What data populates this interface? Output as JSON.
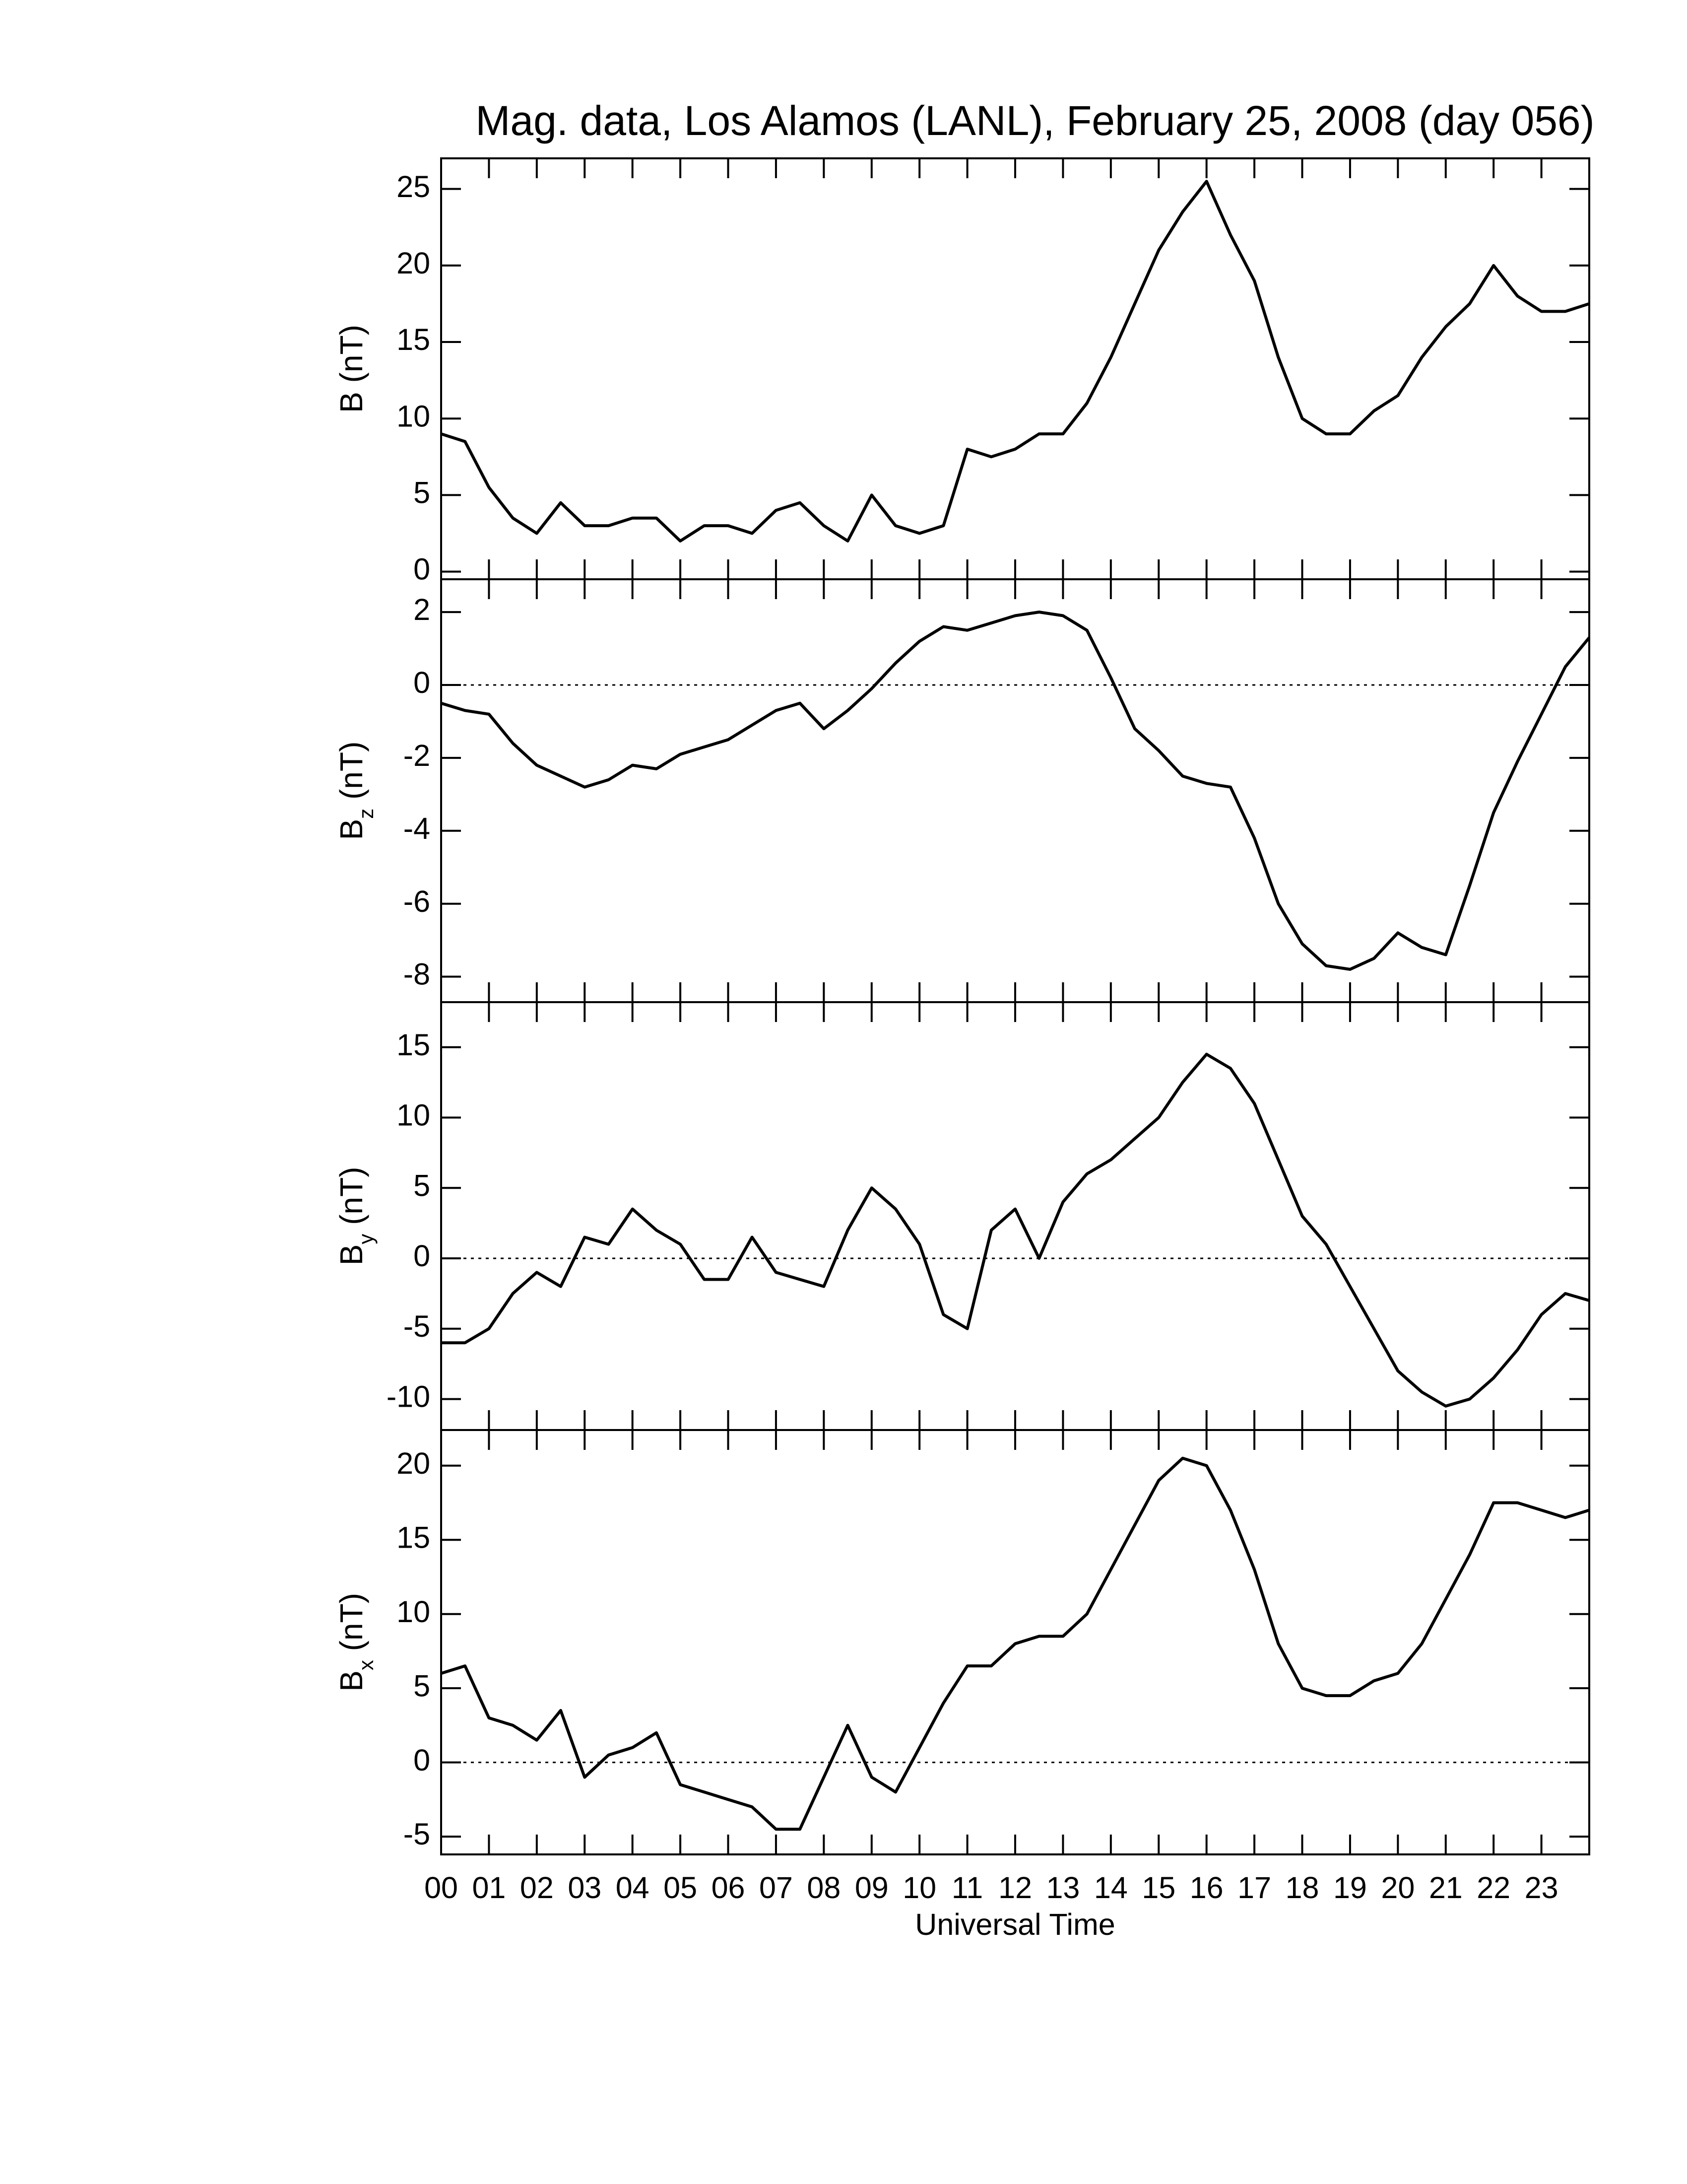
{
  "chart_data": [
    {
      "type": "line",
      "title": "Mag. data, Los Alamos (LANL), February 25, 2008 (day 056)",
      "ylabel": [
        "B (nT)"
      ],
      "x": [
        0,
        0.5,
        1,
        1.5,
        2,
        2.5,
        3,
        3.5,
        4,
        4.5,
        5,
        5.5,
        6,
        6.5,
        7,
        7.5,
        8,
        8.5,
        9,
        9.5,
        10,
        10.5,
        11,
        11.5,
        12,
        12.5,
        13,
        13.5,
        14,
        14.5,
        15,
        15.5,
        16,
        16.5,
        17,
        17.5,
        18,
        18.5,
        19,
        19.5,
        20,
        20.5,
        21,
        21.5,
        22,
        22.5,
        23,
        23.5,
        24
      ],
      "values": [
        9,
        8.5,
        5.5,
        3.5,
        2.5,
        4.5,
        3,
        3,
        3.5,
        3.5,
        2,
        3,
        3,
        2.5,
        4,
        4.5,
        3,
        2,
        5,
        3,
        2.5,
        3,
        8,
        7.5,
        8,
        9,
        9,
        11,
        14,
        17.5,
        21,
        23.5,
        25.5,
        22,
        19,
        14,
        10,
        9,
        9,
        10.5,
        11.5,
        14,
        16,
        17.5,
        20,
        18,
        17,
        17,
        17.5
      ],
      "color": "#000000",
      "zero_line": false,
      "show_xticklabels": false,
      "xlim": [
        0,
        24
      ],
      "ylim": [
        -0.5,
        27
      ],
      "yticks": [
        0,
        5,
        10,
        15,
        20,
        25
      ],
      "xticks": [
        {
          "value": 0,
          "label": "00"
        },
        {
          "value": 1,
          "label": "01"
        },
        {
          "value": 2,
          "label": "02"
        },
        {
          "value": 3,
          "label": "03"
        },
        {
          "value": 4,
          "label": "04"
        },
        {
          "value": 5,
          "label": "05"
        },
        {
          "value": 6,
          "label": "06"
        },
        {
          "value": 7,
          "label": "07"
        },
        {
          "value": 8,
          "label": "08"
        },
        {
          "value": 9,
          "label": "09"
        },
        {
          "value": 10,
          "label": "10"
        },
        {
          "value": 11,
          "label": "11"
        },
        {
          "value": 12,
          "label": "12"
        },
        {
          "value": 13,
          "label": "13"
        },
        {
          "value": 14,
          "label": "14"
        },
        {
          "value": 15,
          "label": "15"
        },
        {
          "value": 16,
          "label": "16"
        },
        {
          "value": 17,
          "label": "17"
        },
        {
          "value": 18,
          "label": "18"
        },
        {
          "value": 19,
          "label": "19"
        },
        {
          "value": 20,
          "label": "20"
        },
        {
          "value": 21,
          "label": "21"
        },
        {
          "value": 22,
          "label": "22"
        },
        {
          "value": 23,
          "label": "23"
        }
      ]
    },
    {
      "type": "line",
      "ylabel": [
        "B",
        "z",
        " (nT)"
      ],
      "x": [
        0,
        0.5,
        1,
        1.5,
        2,
        2.5,
        3,
        3.5,
        4,
        4.5,
        5,
        5.5,
        6,
        6.5,
        7,
        7.5,
        8,
        8.5,
        9,
        9.5,
        10,
        10.5,
        11,
        11.5,
        12,
        12.5,
        13,
        13.5,
        14,
        14.5,
        15,
        15.5,
        16,
        16.5,
        17,
        17.5,
        18,
        18.5,
        19,
        19.5,
        20,
        20.5,
        21,
        21.5,
        22,
        22.5,
        23,
        23.5,
        24
      ],
      "values": [
        -0.5,
        -0.7,
        -0.8,
        -1.6,
        -2.2,
        -2.5,
        -2.8,
        -2.6,
        -2.2,
        -2.3,
        -1.9,
        -1.7,
        -1.5,
        -1.1,
        -0.7,
        -0.5,
        -1.2,
        -0.7,
        -0.1,
        0.6,
        1.2,
        1.6,
        1.5,
        1.7,
        1.9,
        2.0,
        1.9,
        1.5,
        0.2,
        -1.2,
        -1.8,
        -2.5,
        -2.7,
        -2.8,
        -4.2,
        -6,
        -7.1,
        -7.7,
        -7.8,
        -7.5,
        -6.8,
        -7.2,
        -7.4,
        -5.5,
        -3.5,
        -2.1,
        -0.8,
        0.5,
        1.3
      ],
      "color": "#000000",
      "zero_line": true,
      "show_xticklabels": false,
      "xlim": [
        0,
        24
      ],
      "ylim": [
        -8.7,
        2.9
      ],
      "yticks": [
        -8,
        -6,
        -4,
        -2,
        0,
        2
      ],
      "xticks": [
        {
          "value": 0,
          "label": "00"
        },
        {
          "value": 1,
          "label": "01"
        },
        {
          "value": 2,
          "label": "02"
        },
        {
          "value": 3,
          "label": "03"
        },
        {
          "value": 4,
          "label": "04"
        },
        {
          "value": 5,
          "label": "05"
        },
        {
          "value": 6,
          "label": "06"
        },
        {
          "value": 7,
          "label": "07"
        },
        {
          "value": 8,
          "label": "08"
        },
        {
          "value": 9,
          "label": "09"
        },
        {
          "value": 10,
          "label": "10"
        },
        {
          "value": 11,
          "label": "11"
        },
        {
          "value": 12,
          "label": "12"
        },
        {
          "value": 13,
          "label": "13"
        },
        {
          "value": 14,
          "label": "14"
        },
        {
          "value": 15,
          "label": "15"
        },
        {
          "value": 16,
          "label": "16"
        },
        {
          "value": 17,
          "label": "17"
        },
        {
          "value": 18,
          "label": "18"
        },
        {
          "value": 19,
          "label": "19"
        },
        {
          "value": 20,
          "label": "20"
        },
        {
          "value": 21,
          "label": "21"
        },
        {
          "value": 22,
          "label": "22"
        },
        {
          "value": 23,
          "label": "23"
        }
      ]
    },
    {
      "type": "line",
      "ylabel": [
        "B",
        "y",
        " (nT)"
      ],
      "x": [
        0,
        0.5,
        1,
        1.5,
        2,
        2.5,
        3,
        3.5,
        4,
        4.5,
        5,
        5.5,
        6,
        6.5,
        7,
        7.5,
        8,
        8.5,
        9,
        9.5,
        10,
        10.5,
        11,
        11.5,
        12,
        12.5,
        13,
        13.5,
        14,
        14.5,
        15,
        15.5,
        16,
        16.5,
        17,
        17.5,
        18,
        18.5,
        19,
        19.5,
        20,
        20.5,
        21,
        21.5,
        22,
        22.5,
        23,
        23.5,
        24
      ],
      "values": [
        -6,
        -6,
        -5,
        -2.5,
        -1,
        -2,
        1.5,
        1,
        3.5,
        2,
        1,
        -1.5,
        -1.5,
        1.5,
        -1,
        -1.5,
        -2,
        2,
        5,
        3.5,
        1,
        -4,
        -5,
        2,
        3.5,
        0,
        4,
        6,
        7,
        8.5,
        10,
        12.5,
        14.5,
        13.5,
        11,
        7,
        3,
        1,
        -2,
        -5,
        -8,
        -9.5,
        -10.5,
        -10,
        -8.5,
        -6.5,
        -4,
        -2.5,
        -3
      ],
      "color": "#000000",
      "zero_line": true,
      "show_xticklabels": false,
      "xlim": [
        0,
        24
      ],
      "ylim": [
        -12.2,
        18.2
      ],
      "yticks": [
        -10,
        -5,
        0,
        5,
        10,
        15
      ],
      "xticks": [
        {
          "value": 0,
          "label": "00"
        },
        {
          "value": 1,
          "label": "01"
        },
        {
          "value": 2,
          "label": "02"
        },
        {
          "value": 3,
          "label": "03"
        },
        {
          "value": 4,
          "label": "04"
        },
        {
          "value": 5,
          "label": "05"
        },
        {
          "value": 6,
          "label": "06"
        },
        {
          "value": 7,
          "label": "07"
        },
        {
          "value": 8,
          "label": "08"
        },
        {
          "value": 9,
          "label": "09"
        },
        {
          "value": 10,
          "label": "10"
        },
        {
          "value": 11,
          "label": "11"
        },
        {
          "value": 12,
          "label": "12"
        },
        {
          "value": 13,
          "label": "13"
        },
        {
          "value": 14,
          "label": "14"
        },
        {
          "value": 15,
          "label": "15"
        },
        {
          "value": 16,
          "label": "16"
        },
        {
          "value": 17,
          "label": "17"
        },
        {
          "value": 18,
          "label": "18"
        },
        {
          "value": 19,
          "label": "19"
        },
        {
          "value": 20,
          "label": "20"
        },
        {
          "value": 21,
          "label": "21"
        },
        {
          "value": 22,
          "label": "22"
        },
        {
          "value": 23,
          "label": "23"
        }
      ]
    },
    {
      "type": "line",
      "ylabel": [
        "B",
        "x",
        " (nT)"
      ],
      "xlabel": "Universal Time",
      "x": [
        0,
        0.5,
        1,
        1.5,
        2,
        2.5,
        3,
        3.5,
        4,
        4.5,
        5,
        5.5,
        6,
        6.5,
        7,
        7.5,
        8,
        8.5,
        9,
        9.5,
        10,
        10.5,
        11,
        11.5,
        12,
        12.5,
        13,
        13.5,
        14,
        14.5,
        15,
        15.5,
        16,
        16.5,
        17,
        17.5,
        18,
        18.5,
        19,
        19.5,
        20,
        20.5,
        21,
        21.5,
        22,
        22.5,
        23,
        23.5,
        24
      ],
      "values": [
        6,
        6.5,
        3,
        2.5,
        1.5,
        3.5,
        -1,
        0.5,
        1,
        2,
        -1.5,
        -2,
        -2.5,
        -3,
        -4.5,
        -4.5,
        -1,
        2.5,
        -1,
        -2,
        1,
        4,
        6.5,
        6.5,
        8,
        8.5,
        8.5,
        10,
        13,
        16,
        19,
        20.5,
        20,
        17,
        13,
        8,
        5,
        4.5,
        4.5,
        5.5,
        6,
        8,
        11,
        14,
        17.5,
        17.5,
        17,
        16.5,
        17
      ],
      "color": "#000000",
      "zero_line": true,
      "show_xticklabels": true,
      "xlim": [
        0,
        24
      ],
      "ylim": [
        -6.2,
        22.4
      ],
      "yticks": [
        -5,
        0,
        5,
        10,
        15,
        20
      ],
      "xticks": [
        {
          "value": 0,
          "label": "00"
        },
        {
          "value": 1,
          "label": "01"
        },
        {
          "value": 2,
          "label": "02"
        },
        {
          "value": 3,
          "label": "03"
        },
        {
          "value": 4,
          "label": "04"
        },
        {
          "value": 5,
          "label": "05"
        },
        {
          "value": 6,
          "label": "06"
        },
        {
          "value": 7,
          "label": "07"
        },
        {
          "value": 8,
          "label": "08"
        },
        {
          "value": 9,
          "label": "09"
        },
        {
          "value": 10,
          "label": "10"
        },
        {
          "value": 11,
          "label": "11"
        },
        {
          "value": 12,
          "label": "12"
        },
        {
          "value": 13,
          "label": "13"
        },
        {
          "value": 14,
          "label": "14"
        },
        {
          "value": 15,
          "label": "15"
        },
        {
          "value": 16,
          "label": "16"
        },
        {
          "value": 17,
          "label": "17"
        },
        {
          "value": 18,
          "label": "18"
        },
        {
          "value": 19,
          "label": "19"
        },
        {
          "value": 20,
          "label": "20"
        },
        {
          "value": 21,
          "label": "21"
        },
        {
          "value": 22,
          "label": "22"
        },
        {
          "value": 23,
          "label": "23"
        }
      ]
    }
  ]
}
